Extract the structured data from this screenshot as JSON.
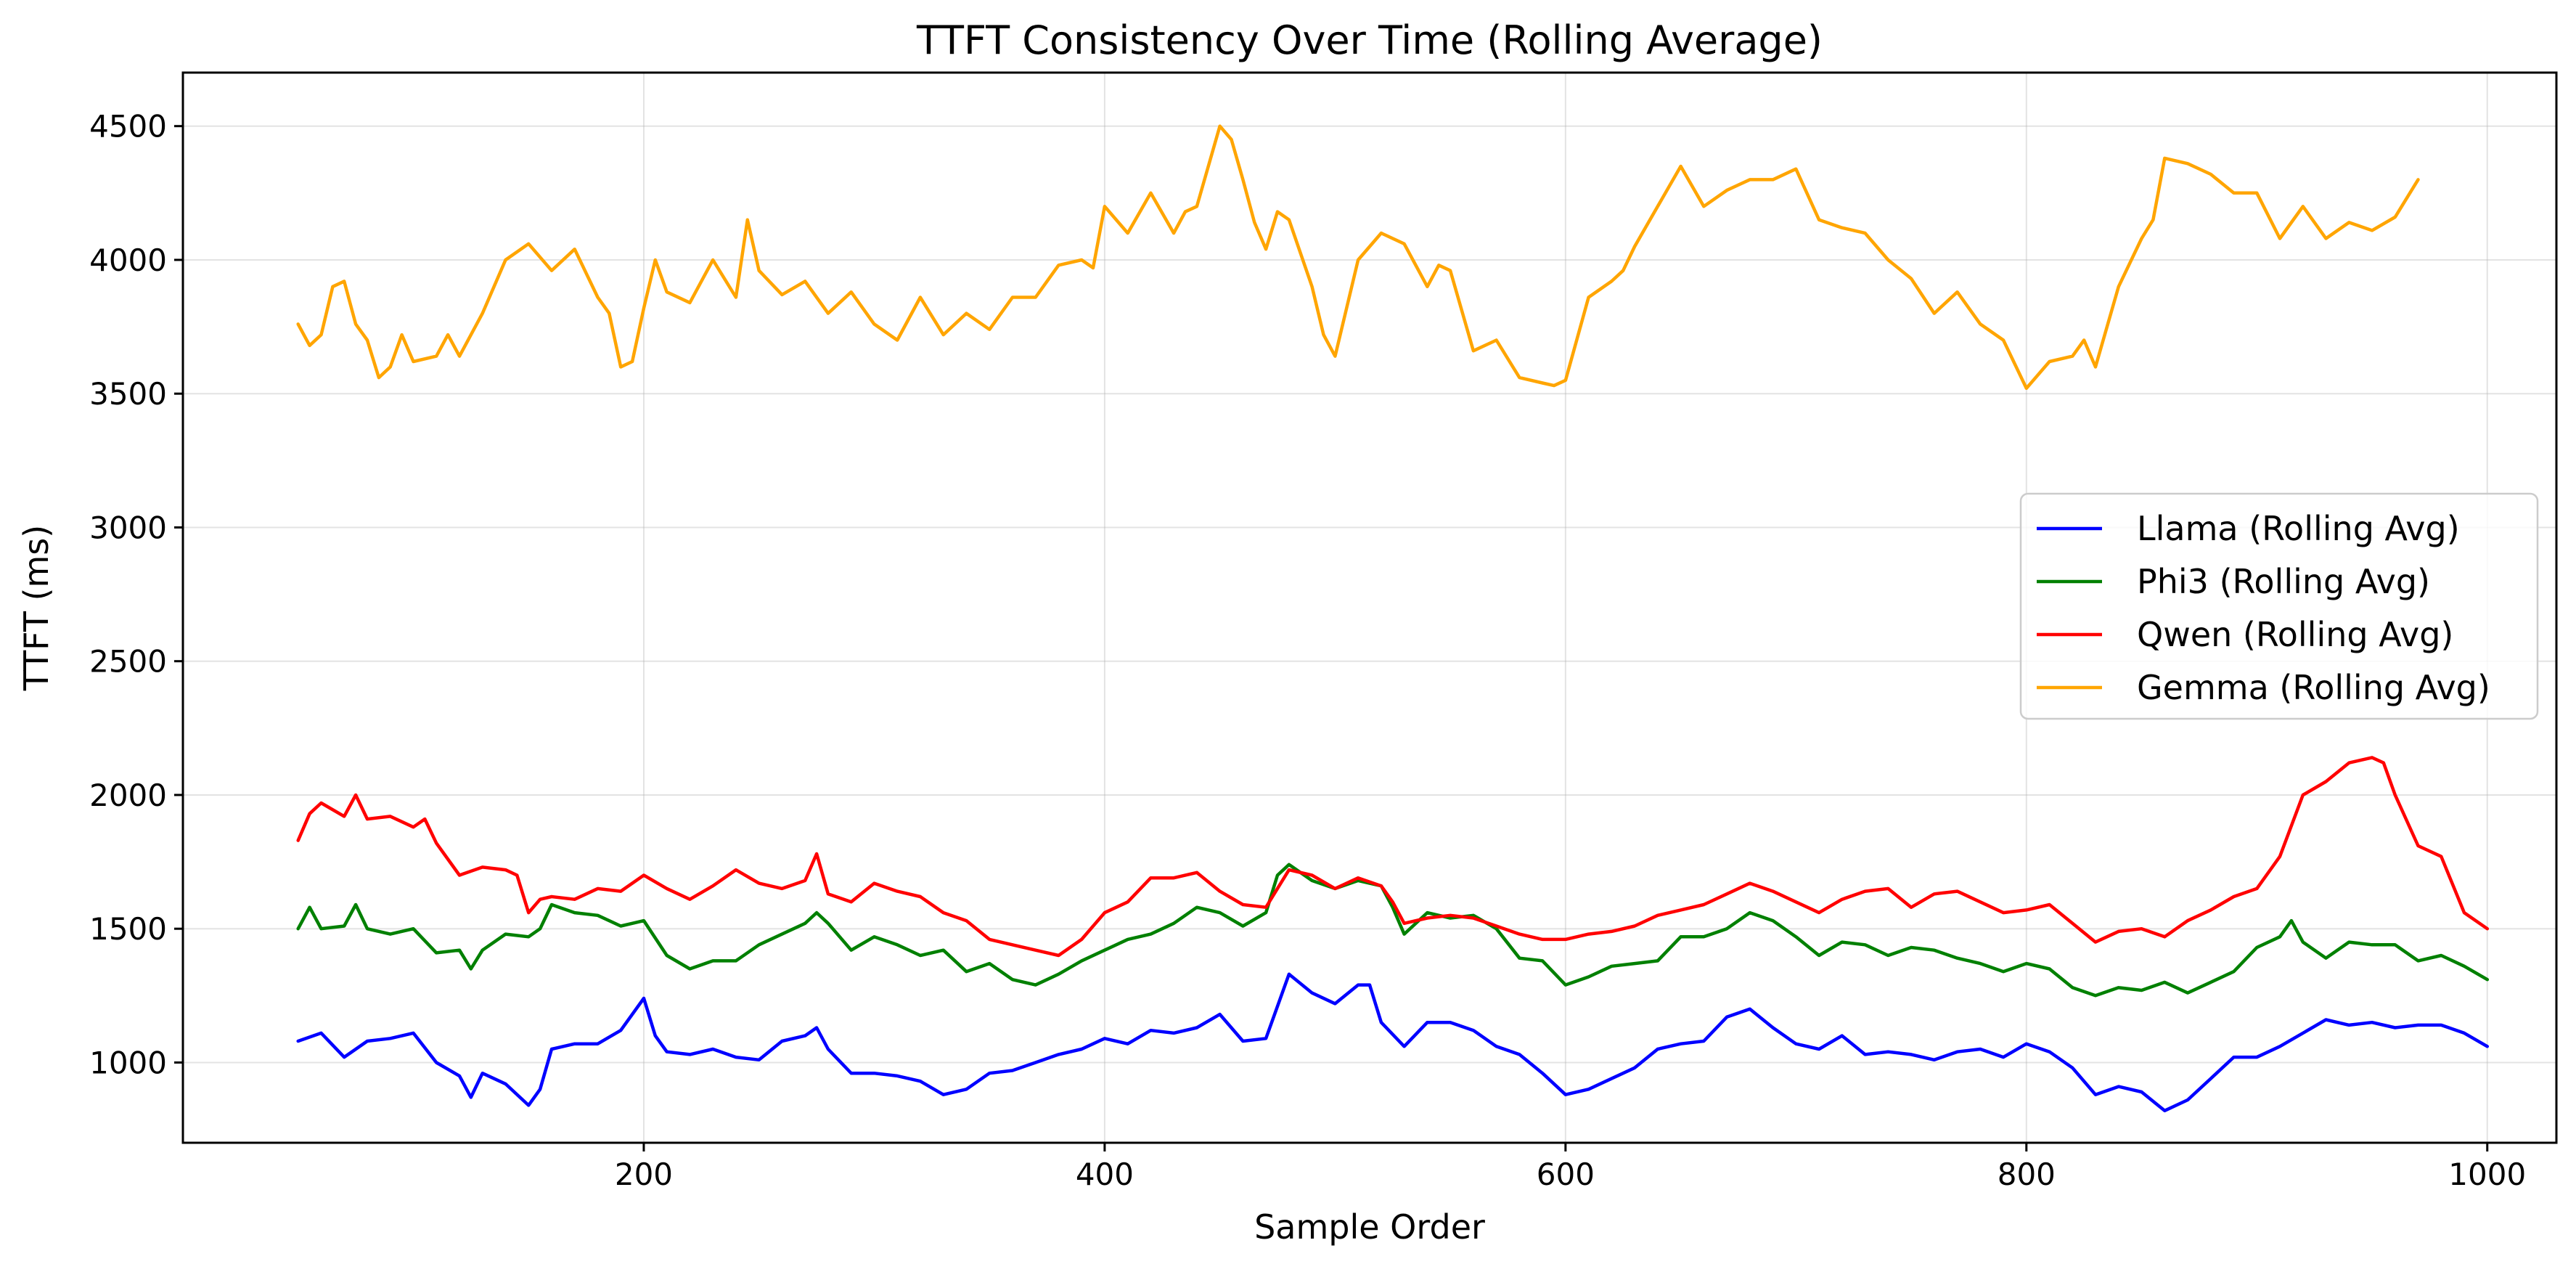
{
  "chart_data": {
    "type": "line",
    "title": "TTFT Consistency Over Time (Rolling Average)",
    "xlabel": "Sample Order",
    "ylabel": "TTFT (ms)",
    "xlim": [
      0,
      1030
    ],
    "ylim": [
      700,
      4700
    ],
    "x_ticks": [
      200,
      400,
      600,
      800,
      1000
    ],
    "y_ticks": [
      1000,
      1500,
      2000,
      2500,
      3000,
      3500,
      4000,
      4500
    ],
    "grid": true,
    "legend_position": "center-right",
    "series": [
      {
        "name": "Llama (Rolling Avg)",
        "color": "#0000ff",
        "x": [
          50,
          60,
          70,
          80,
          90,
          100,
          110,
          120,
          125,
          130,
          140,
          150,
          155,
          160,
          170,
          180,
          190,
          200,
          205,
          210,
          220,
          230,
          240,
          250,
          260,
          270,
          275,
          280,
          290,
          300,
          310,
          320,
          330,
          340,
          350,
          360,
          370,
          380,
          390,
          400,
          410,
          420,
          430,
          440,
          450,
          460,
          470,
          480,
          490,
          500,
          510,
          515,
          520,
          530,
          540,
          550,
          560,
          570,
          580,
          590,
          600,
          610,
          620,
          630,
          640,
          650,
          660,
          670,
          680,
          690,
          700,
          710,
          720,
          730,
          740,
          750,
          760,
          770,
          780,
          790,
          800,
          810,
          820,
          830,
          840,
          850,
          860,
          870,
          880,
          890,
          900,
          910,
          920,
          930,
          940,
          950,
          960,
          970,
          980,
          990,
          1000
        ],
        "values": [
          1080,
          1110,
          1020,
          1080,
          1090,
          1110,
          1000,
          950,
          870,
          960,
          920,
          840,
          900,
          1050,
          1070,
          1070,
          1120,
          1240,
          1100,
          1040,
          1030,
          1050,
          1020,
          1010,
          1080,
          1100,
          1130,
          1050,
          960,
          960,
          950,
          930,
          880,
          900,
          960,
          970,
          1000,
          1030,
          1050,
          1090,
          1070,
          1120,
          1110,
          1130,
          1180,
          1080,
          1090,
          1330,
          1260,
          1220,
          1290,
          1290,
          1150,
          1060,
          1150,
          1150,
          1120,
          1060,
          1030,
          960,
          880,
          900,
          940,
          980,
          1050,
          1070,
          1080,
          1170,
          1200,
          1130,
          1070,
          1050,
          1100,
          1030,
          1040,
          1030,
          1010,
          1040,
          1050,
          1020,
          1070,
          1040,
          980,
          880,
          910,
          890,
          820,
          860,
          940,
          1020,
          1020,
          1060,
          1110,
          1160,
          1140,
          1150,
          1130,
          1140,
          1140,
          1110,
          1060
        ]
      },
      {
        "name": "Phi3 (Rolling Avg)",
        "color": "#008000",
        "x": [
          50,
          55,
          60,
          70,
          75,
          80,
          90,
          100,
          110,
          120,
          125,
          130,
          140,
          150,
          155,
          160,
          170,
          180,
          190,
          200,
          210,
          220,
          230,
          240,
          250,
          260,
          270,
          275,
          280,
          290,
          300,
          310,
          320,
          330,
          340,
          350,
          360,
          370,
          380,
          390,
          400,
          410,
          420,
          430,
          440,
          450,
          460,
          470,
          475,
          480,
          490,
          500,
          510,
          520,
          525,
          530,
          540,
          550,
          560,
          570,
          580,
          590,
          600,
          610,
          620,
          630,
          640,
          650,
          660,
          670,
          680,
          690,
          700,
          710,
          720,
          730,
          740,
          750,
          760,
          770,
          780,
          790,
          800,
          810,
          820,
          830,
          840,
          850,
          860,
          870,
          880,
          890,
          900,
          910,
          915,
          920,
          930,
          940,
          950,
          960,
          970,
          980,
          990,
          1000
        ],
        "values": [
          1500,
          1580,
          1500,
          1510,
          1590,
          1500,
          1480,
          1500,
          1410,
          1420,
          1350,
          1420,
          1480,
          1470,
          1500,
          1590,
          1560,
          1550,
          1510,
          1530,
          1400,
          1350,
          1380,
          1380,
          1440,
          1480,
          1520,
          1560,
          1520,
          1420,
          1470,
          1440,
          1400,
          1420,
          1340,
          1370,
          1310,
          1290,
          1330,
          1380,
          1420,
          1460,
          1480,
          1520,
          1580,
          1560,
          1510,
          1560,
          1700,
          1740,
          1680,
          1650,
          1680,
          1660,
          1580,
          1480,
          1560,
          1540,
          1550,
          1500,
          1390,
          1380,
          1290,
          1320,
          1360,
          1370,
          1380,
          1470,
          1470,
          1500,
          1560,
          1530,
          1470,
          1400,
          1450,
          1440,
          1400,
          1430,
          1420,
          1390,
          1370,
          1340,
          1370,
          1350,
          1280,
          1250,
          1280,
          1270,
          1300,
          1260,
          1300,
          1340,
          1430,
          1470,
          1530,
          1450,
          1390,
          1450,
          1440,
          1440,
          1380,
          1400,
          1360,
          1310
        ]
      },
      {
        "name": "Qwen (Rolling Avg)",
        "color": "#ff0000",
        "x": [
          50,
          55,
          60,
          70,
          75,
          80,
          90,
          100,
          105,
          110,
          120,
          130,
          140,
          145,
          150,
          155,
          160,
          170,
          180,
          190,
          200,
          210,
          220,
          230,
          240,
          250,
          260,
          270,
          275,
          280,
          290,
          300,
          310,
          320,
          330,
          340,
          350,
          360,
          370,
          380,
          390,
          400,
          410,
          420,
          430,
          440,
          450,
          460,
          470,
          480,
          490,
          500,
          510,
          520,
          525,
          530,
          540,
          550,
          560,
          570,
          580,
          590,
          600,
          610,
          620,
          630,
          640,
          650,
          660,
          670,
          680,
          690,
          700,
          710,
          720,
          730,
          740,
          750,
          760,
          770,
          780,
          790,
          800,
          810,
          820,
          830,
          840,
          850,
          860,
          870,
          880,
          890,
          900,
          910,
          920,
          930,
          940,
          950,
          955,
          960,
          970,
          980,
          990,
          1000
        ],
        "values": [
          1830,
          1930,
          1970,
          1920,
          2000,
          1910,
          1920,
          1880,
          1910,
          1820,
          1700,
          1730,
          1720,
          1700,
          1560,
          1610,
          1620,
          1610,
          1650,
          1640,
          1700,
          1650,
          1610,
          1660,
          1720,
          1670,
          1650,
          1680,
          1780,
          1630,
          1600,
          1670,
          1640,
          1620,
          1560,
          1530,
          1460,
          1440,
          1420,
          1400,
          1460,
          1560,
          1600,
          1690,
          1690,
          1710,
          1640,
          1590,
          1580,
          1720,
          1700,
          1650,
          1690,
          1660,
          1600,
          1520,
          1540,
          1550,
          1540,
          1510,
          1480,
          1460,
          1460,
          1480,
          1490,
          1510,
          1550,
          1570,
          1590,
          1630,
          1670,
          1640,
          1600,
          1560,
          1610,
          1640,
          1650,
          1580,
          1630,
          1640,
          1600,
          1560,
          1570,
          1590,
          1520,
          1450,
          1490,
          1500,
          1470,
          1530,
          1570,
          1620,
          1650,
          1770,
          2000,
          2050,
          2120,
          2140,
          2120,
          2000,
          1810,
          1770,
          1560,
          1500
        ]
      },
      {
        "name": "Gemma (Rolling Avg)",
        "color": "#ffa500",
        "x": [
          50,
          55,
          60,
          65,
          70,
          75,
          80,
          85,
          90,
          95,
          100,
          110,
          115,
          120,
          130,
          140,
          150,
          160,
          170,
          180,
          185,
          190,
          195,
          200,
          205,
          210,
          220,
          230,
          240,
          245,
          250,
          260,
          270,
          280,
          290,
          300,
          310,
          320,
          330,
          340,
          350,
          360,
          370,
          380,
          390,
          395,
          400,
          410,
          420,
          430,
          435,
          440,
          450,
          455,
          460,
          465,
          470,
          475,
          480,
          490,
          495,
          500,
          510,
          520,
          530,
          540,
          545,
          550,
          560,
          570,
          580,
          590,
          595,
          600,
          610,
          620,
          625,
          630,
          640,
          650,
          660,
          670,
          680,
          690,
          700,
          710,
          720,
          730,
          740,
          750,
          760,
          770,
          780,
          790,
          800,
          810,
          820,
          825,
          830,
          840,
          850,
          855,
          860,
          870,
          880,
          890,
          900,
          910,
          920,
          930,
          940,
          950,
          960,
          970
        ],
        "values": [
          3760,
          3680,
          3720,
          3900,
          3920,
          3760,
          3700,
          3560,
          3600,
          3720,
          3620,
          3640,
          3720,
          3640,
          3800,
          4000,
          4060,
          3960,
          4040,
          3860,
          3800,
          3600,
          3620,
          3820,
          4000,
          3880,
          3840,
          4000,
          3860,
          4150,
          3960,
          3870,
          3920,
          3800,
          3880,
          3760,
          3700,
          3860,
          3720,
          3800,
          3740,
          3860,
          3860,
          3980,
          4000,
          3970,
          4200,
          4100,
          4250,
          4100,
          4180,
          4200,
          4500,
          4450,
          4300,
          4140,
          4040,
          4180,
          4150,
          3900,
          3720,
          3640,
          4000,
          4100,
          4060,
          3900,
          3980,
          3960,
          3660,
          3700,
          3560,
          3540,
          3530,
          3550,
          3860,
          3920,
          3960,
          4050,
          4200,
          4350,
          4200,
          4260,
          4300,
          4300,
          4340,
          4150,
          4120,
          4100,
          4000,
          3930,
          3800,
          3880,
          3760,
          3700,
          3520,
          3620,
          3640,
          3700,
          3600,
          3900,
          4080,
          4150,
          4380,
          4360,
          4320,
          4250,
          4250,
          4080,
          4200,
          4080,
          4140,
          4110,
          4160,
          4300
        ]
      }
    ]
  }
}
